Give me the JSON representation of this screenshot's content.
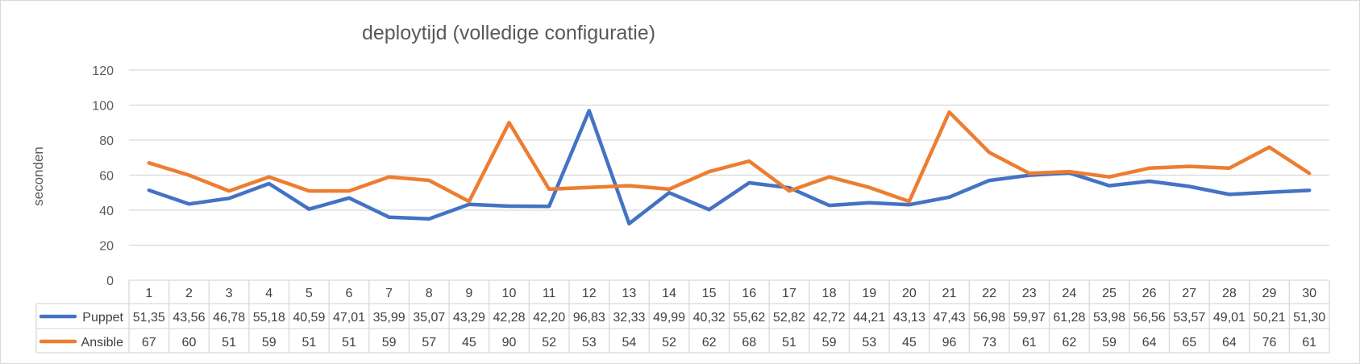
{
  "chart_data": {
    "type": "line",
    "title": "deploytijd (volledige configuratie)",
    "ylabel": "seconden",
    "xlabel": "",
    "ylim": [
      0,
      120
    ],
    "yticks": [
      "0",
      "20",
      "40",
      "60",
      "80",
      "100",
      "120"
    ],
    "grid": true,
    "legend": "data-table",
    "categories": [
      "1",
      "2",
      "3",
      "4",
      "5",
      "6",
      "7",
      "8",
      "9",
      "10",
      "11",
      "12",
      "13",
      "14",
      "15",
      "16",
      "17",
      "18",
      "19",
      "20",
      "21",
      "22",
      "23",
      "24",
      "25",
      "26",
      "27",
      "28",
      "29",
      "30"
    ],
    "series": [
      {
        "name": "Puppet",
        "color": "#4472c4",
        "values": [
          51.35,
          43.56,
          46.78,
          55.18,
          40.59,
          47.01,
          35.99,
          35.07,
          43.29,
          42.28,
          42.2,
          96.83,
          32.33,
          49.99,
          40.32,
          55.62,
          52.82,
          42.72,
          44.21,
          43.13,
          47.43,
          56.98,
          59.97,
          61.28,
          53.98,
          56.56,
          53.57,
          49.01,
          50.21,
          51.3
        ],
        "labels": [
          "51,35",
          "43,56",
          "46,78",
          "55,18",
          "40,59",
          "47,01",
          "35,99",
          "35,07",
          "43,29",
          "42,28",
          "42,20",
          "96,83",
          "32,33",
          "49,99",
          "40,32",
          "55,62",
          "52,82",
          "42,72",
          "44,21",
          "43,13",
          "47,43",
          "56,98",
          "59,97",
          "61,28",
          "53,98",
          "56,56",
          "53,57",
          "49,01",
          "50,21",
          "51,30"
        ]
      },
      {
        "name": "Ansible",
        "color": "#ed7d31",
        "values": [
          67,
          60,
          51,
          59,
          51,
          51,
          59,
          57,
          45,
          90,
          52,
          53,
          54,
          52,
          62,
          68,
          51,
          59,
          53,
          45,
          96,
          73,
          61,
          62,
          59,
          64,
          65,
          64,
          76,
          61
        ],
        "labels": [
          "67",
          "60",
          "51",
          "59",
          "51",
          "51",
          "59",
          "57",
          "45",
          "90",
          "52",
          "53",
          "54",
          "52",
          "62",
          "68",
          "51",
          "59",
          "53",
          "45",
          "96",
          "73",
          "61",
          "62",
          "59",
          "64",
          "65",
          "64",
          "76",
          "61"
        ]
      }
    ]
  }
}
